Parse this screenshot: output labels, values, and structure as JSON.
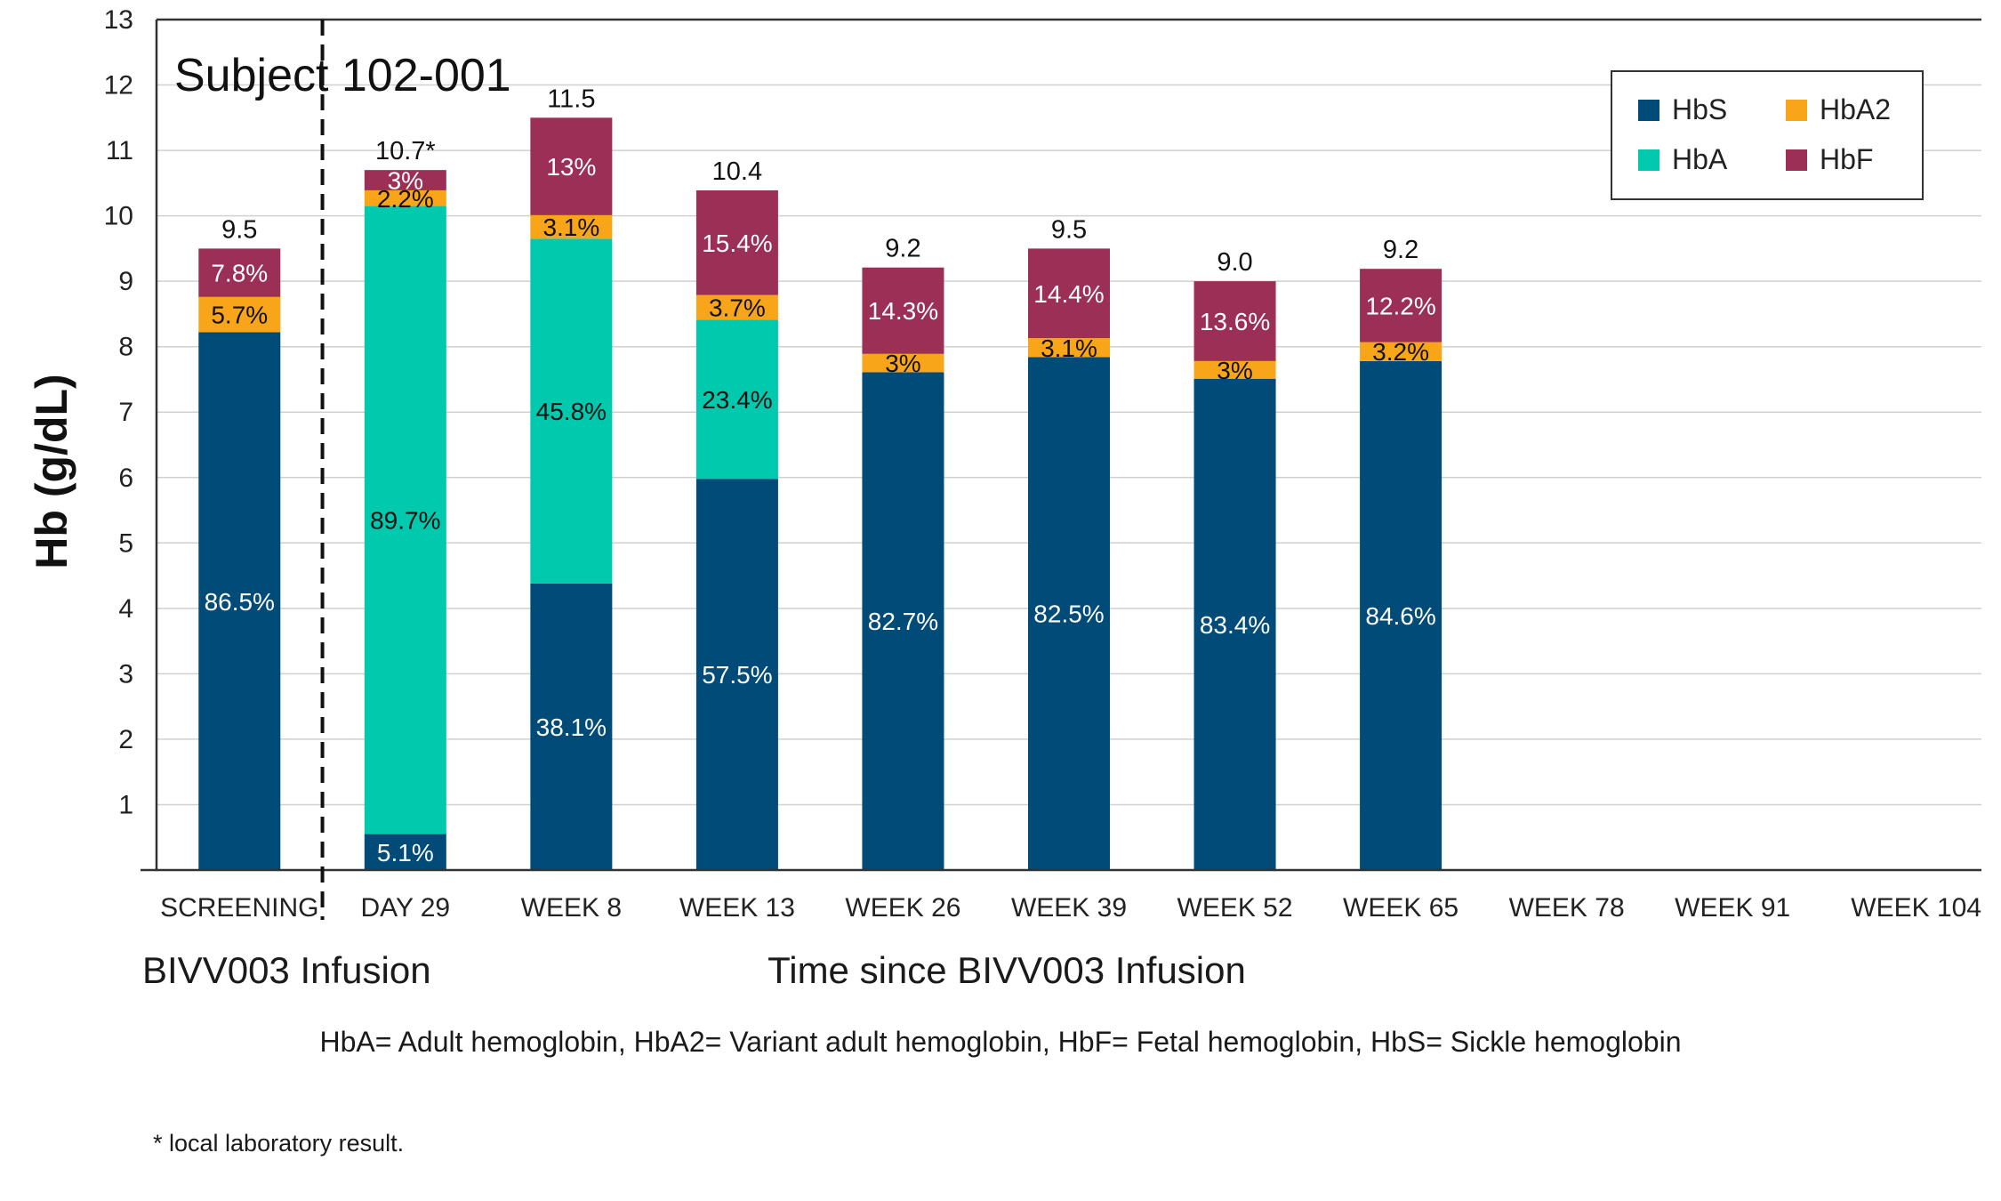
{
  "chart_data": {
    "type": "bar",
    "stacked": true,
    "title": "Subject 102-001",
    "ylabel": "Hb (g/dL)",
    "xlabel": "Time since BIVV003 Infusion",
    "baseline_label": "BIVV003 Infusion",
    "ylim": [
      0,
      13
    ],
    "yticks": [
      1,
      2,
      3,
      4,
      5,
      6,
      7,
      8,
      9,
      10,
      11,
      12,
      13
    ],
    "grid": true,
    "legend_position": "top-right",
    "categories": [
      "SCREENING",
      "DAY 29",
      "WEEK 8",
      "WEEK 13",
      "WEEK 26",
      "WEEK 39",
      "WEEK 52",
      "WEEK 65",
      "WEEK 78",
      "WEEK 91",
      "WEEK 104"
    ],
    "totals": [
      9.5,
      10.7,
      11.5,
      10.4,
      9.2,
      9.5,
      9.0,
      9.2,
      null,
      null,
      null
    ],
    "total_labels": [
      "9.5",
      "10.7*",
      "11.5",
      "10.4",
      "9.2",
      "9.5",
      "9.0",
      "9.2",
      "",
      "",
      ""
    ],
    "series": [
      {
        "name": "HbS",
        "color": "#004b78",
        "values": [
          8.22,
          0.55,
          4.38,
          5.98,
          7.61,
          7.84,
          7.51,
          7.78,
          null,
          null,
          null
        ],
        "labels": [
          "86.5%",
          "5.1%",
          "38.1%",
          "57.5%",
          "82.7%",
          "82.5%",
          "83.4%",
          "84.6%",
          "",
          "",
          ""
        ]
      },
      {
        "name": "HbA",
        "color": "#00c9ad",
        "values": [
          0,
          9.6,
          5.27,
          2.43,
          0,
          0,
          0,
          0,
          null,
          null,
          null
        ],
        "labels": [
          "",
          "89.7%",
          "45.8%",
          "23.4%",
          "",
          "",
          "",
          "",
          "",
          "",
          ""
        ]
      },
      {
        "name": "HbA2",
        "color": "#f9a51a",
        "values": [
          0.54,
          0.24,
          0.36,
          0.38,
          0.28,
          0.29,
          0.27,
          0.29,
          null,
          null,
          null
        ],
        "labels": [
          "5.7%",
          "2.2%",
          "3.1%",
          "3.7%",
          "3%",
          "3.1%",
          "3%",
          "3.2%",
          "",
          "",
          ""
        ]
      },
      {
        "name": "HbF",
        "color": "#9c2f55",
        "values": [
          0.74,
          0.31,
          1.49,
          1.6,
          1.32,
          1.37,
          1.22,
          1.12,
          null,
          null,
          null
        ],
        "labels": [
          "7.8%",
          "3%",
          "13%",
          "15.4%",
          "14.3%",
          "14.4%",
          "13.6%",
          "12.2%",
          "",
          "",
          ""
        ]
      }
    ],
    "legend_order": [
      "HbS",
      "HbA2",
      "HbA",
      "HbF"
    ]
  },
  "footnotes": {
    "abbreviations": "HbA= Adult hemoglobin,  HbA2= Variant adult hemoglobin, HbF= Fetal hemoglobin, HbS= Sickle hemoglobin",
    "asterisk": "* local laboratory result."
  }
}
